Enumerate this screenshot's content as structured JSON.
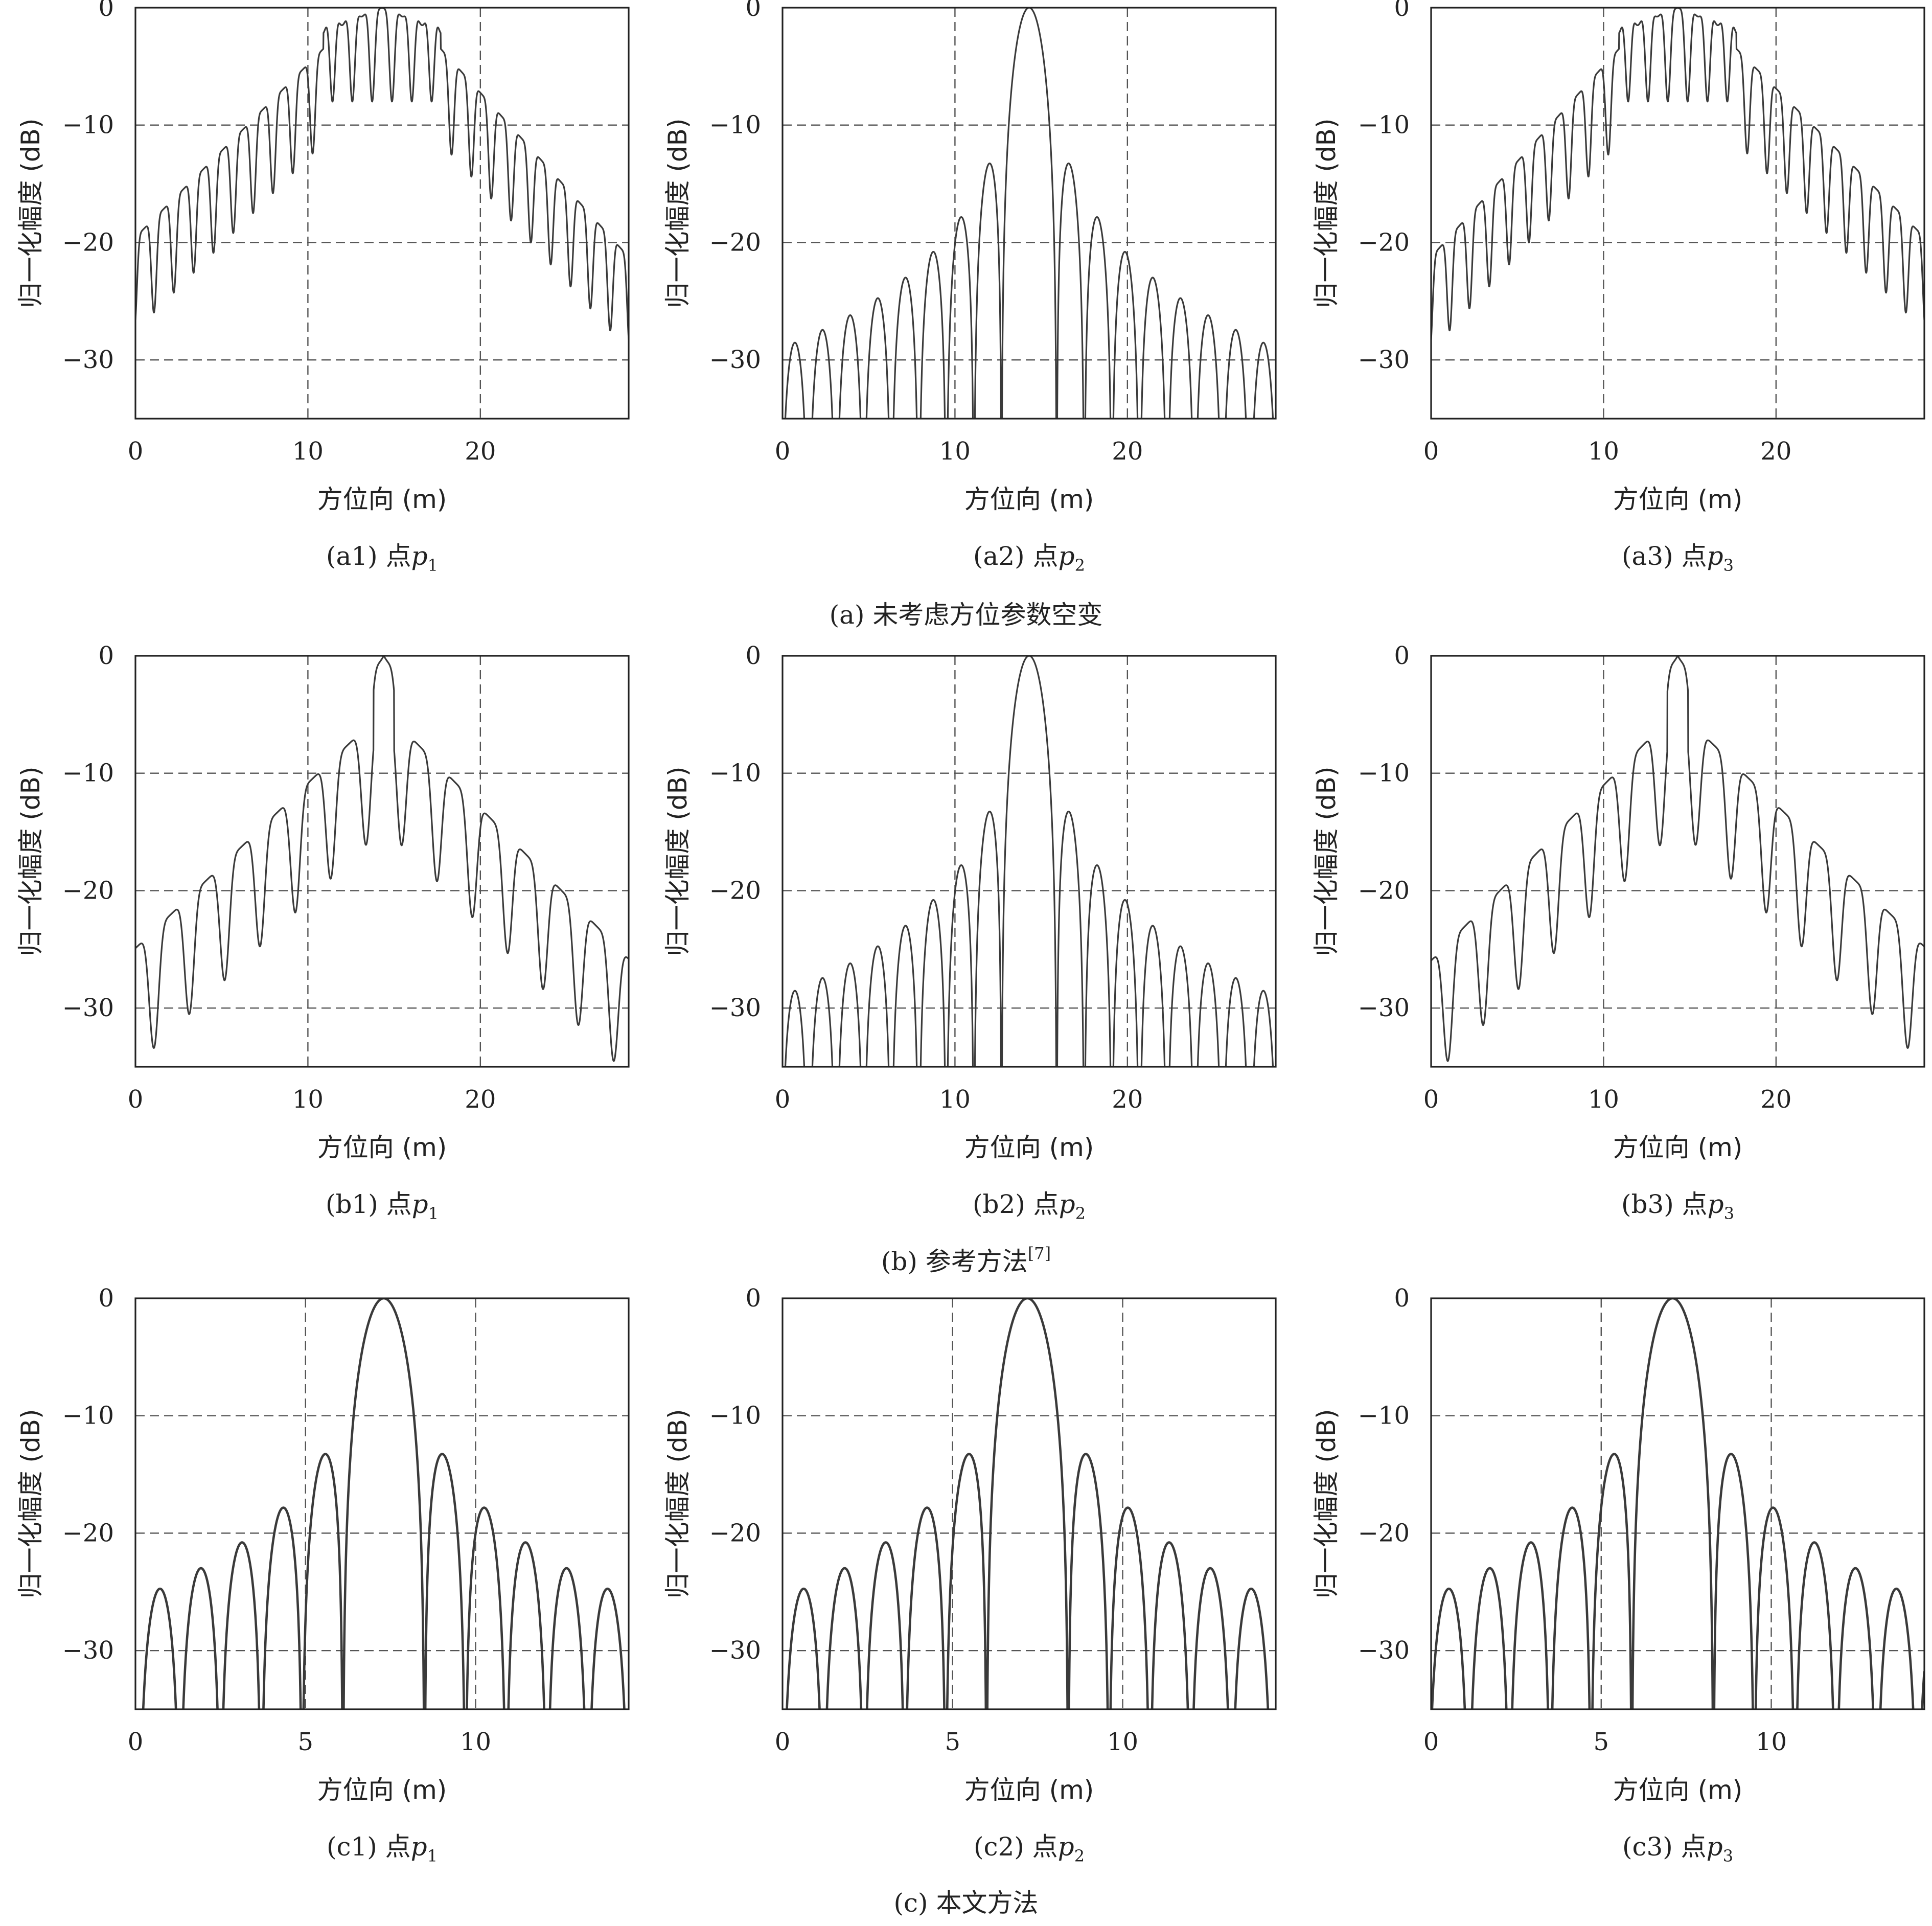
{
  "figure": {
    "group_captions": [
      {
        "prefix": "(a) ",
        "text": "未考虑方位参数空变"
      },
      {
        "prefix": "(b) ",
        "text": "参考方法",
        "ref": "[7]"
      },
      {
        "prefix": "(c) ",
        "text": "本文方法"
      }
    ],
    "colors": {
      "curve": "#3a3a3a",
      "grid": "#555555",
      "frame": "#222222",
      "background": "#ffffff"
    }
  },
  "chart_data": [
    {
      "id": "a1",
      "type": "line",
      "panel_label": "(a1)",
      "point_label": "点",
      "point_var": "p",
      "point_sub": "1",
      "xlabel": "方位向 (m)",
      "ylabel": "归一化幅度 (dB)",
      "xlim": [
        0,
        28.6
      ],
      "ylim": [
        -35,
        0
      ],
      "xticks": [
        0,
        10,
        20
      ],
      "yticks": [
        0,
        -10,
        -20,
        -30
      ],
      "x_grid": [
        10,
        20
      ],
      "y_grid": [
        -10,
        -20,
        -30
      ],
      "model": {
        "kind": "broad",
        "center": 14.3,
        "spacing": 1.15,
        "flat_half_width": 3.4,
        "flat_level": 0,
        "decay_db_per_m": 1.55,
        "shoulder_drop": 3.5,
        "ripple_db": 2.2,
        "null_db": 8,
        "asym": 0.05,
        "stroke": 3.2
      }
    },
    {
      "id": "a2",
      "type": "line",
      "panel_label": "(a2)",
      "point_label": "点",
      "point_var": "p",
      "point_sub": "2",
      "xlabel": "方位向 (m)",
      "ylabel": "归一化幅度 (dB)",
      "xlim": [
        0,
        28.6
      ],
      "ylim": [
        -35,
        0
      ],
      "xticks": [
        0,
        10,
        20
      ],
      "yticks": [
        0,
        -10,
        -20,
        -30
      ],
      "x_grid": [
        10,
        20
      ],
      "y_grid": [
        -10,
        -20,
        -30
      ],
      "model": {
        "kind": "sinc",
        "center": 14.3,
        "spacing": 1.6,
        "stroke": 3.2
      }
    },
    {
      "id": "a3",
      "type": "line",
      "panel_label": "(a3)",
      "point_label": "点",
      "point_var": "p",
      "point_sub": "3",
      "xlabel": "方位向 (m)",
      "ylabel": "归一化幅度 (dB)",
      "xlim": [
        0,
        28.6
      ],
      "ylim": [
        -35,
        0
      ],
      "xticks": [
        0,
        10,
        20
      ],
      "yticks": [
        0,
        -10,
        -20,
        -30
      ],
      "x_grid": [
        10,
        20
      ],
      "y_grid": [
        -10,
        -20,
        -30
      ],
      "model": {
        "kind": "broad",
        "center": 14.3,
        "spacing": 1.15,
        "flat_half_width": 3.4,
        "flat_level": 0,
        "decay_db_per_m": 1.55,
        "shoulder_drop": 3.5,
        "ripple_db": 2.2,
        "null_db": 8,
        "asym": -0.05,
        "stroke": 3.2
      }
    },
    {
      "id": "b1",
      "type": "line",
      "panel_label": "(b1)",
      "point_label": "点",
      "point_var": "p",
      "point_sub": "1",
      "xlabel": "方位向 (m)",
      "ylabel": "归一化幅度 (dB)",
      "xlim": [
        0,
        28.6
      ],
      "ylim": [
        -35,
        0
      ],
      "xticks": [
        0,
        10,
        20
      ],
      "yticks": [
        0,
        -10,
        -20,
        -30
      ],
      "x_grid": [
        10,
        20
      ],
      "y_grid": [
        -10,
        -20,
        -30
      ],
      "model": {
        "kind": "broad",
        "center": 14.4,
        "spacing": 2.05,
        "flat_half_width": 0.6,
        "flat_level": 0,
        "decay_db_per_m": 1.45,
        "shoulder_drop": 5.5,
        "ripple_db": 1.5,
        "null_db": 10,
        "asym": 0.03,
        "stroke": 3.2
      }
    },
    {
      "id": "b2",
      "type": "line",
      "panel_label": "(b2)",
      "point_label": "点",
      "point_var": "p",
      "point_sub": "2",
      "xlabel": "方位向 (m)",
      "ylabel": "归一化幅度 (dB)",
      "xlim": [
        0,
        28.6
      ],
      "ylim": [
        -35,
        0
      ],
      "xticks": [
        0,
        10,
        20
      ],
      "yticks": [
        0,
        -10,
        -20,
        -30
      ],
      "x_grid": [
        10,
        20
      ],
      "y_grid": [
        -10,
        -20,
        -30
      ],
      "model": {
        "kind": "sinc",
        "center": 14.3,
        "spacing": 1.6,
        "stroke": 3.2
      }
    },
    {
      "id": "b3",
      "type": "line",
      "panel_label": "(b3)",
      "point_label": "点",
      "point_var": "p",
      "point_sub": "3",
      "xlabel": "方位向 (m)",
      "ylabel": "归一化幅度 (dB)",
      "xlim": [
        0,
        28.6
      ],
      "ylim": [
        -35,
        0
      ],
      "xticks": [
        0,
        10,
        20
      ],
      "yticks": [
        0,
        -10,
        -20,
        -30
      ],
      "x_grid": [
        10,
        20
      ],
      "y_grid": [
        -10,
        -20,
        -30
      ],
      "model": {
        "kind": "broad",
        "center": 14.3,
        "spacing": 2.05,
        "flat_half_width": 0.6,
        "flat_level": 0,
        "decay_db_per_m": 1.45,
        "shoulder_drop": 5.5,
        "ripple_db": 1.5,
        "null_db": 10,
        "asym": -0.03,
        "stroke": 3.2
      }
    },
    {
      "id": "c1",
      "type": "line",
      "panel_label": "(c1)",
      "point_label": "点",
      "point_var": "p",
      "point_sub": "1",
      "xlabel": "方位向 (m)",
      "ylabel": "归一化幅度 (dB)",
      "xlim": [
        0,
        14.5
      ],
      "ylim": [
        -35,
        0
      ],
      "xticks": [
        0,
        5,
        10
      ],
      "yticks": [
        0,
        -10,
        -20,
        -30
      ],
      "x_grid": [
        5,
        10
      ],
      "y_grid": [
        -10,
        -20,
        -30
      ],
      "model": {
        "kind": "sinc",
        "center": 7.3,
        "spacing": 1.2,
        "stroke": 4.6
      }
    },
    {
      "id": "c2",
      "type": "line",
      "panel_label": "(c2)",
      "point_label": "点",
      "point_var": "p",
      "point_sub": "2",
      "xlabel": "方位向 (m)",
      "ylabel": "归一化幅度 (dB)",
      "xlim": [
        0,
        14.5
      ],
      "ylim": [
        -35,
        0
      ],
      "xticks": [
        0,
        5,
        10
      ],
      "yticks": [
        0,
        -10,
        -20,
        -30
      ],
      "x_grid": [
        5,
        10
      ],
      "y_grid": [
        -10,
        -20,
        -30
      ],
      "model": {
        "kind": "sinc",
        "center": 7.2,
        "spacing": 1.2,
        "stroke": 4.6
      }
    },
    {
      "id": "c3",
      "type": "line",
      "panel_label": "(c3)",
      "point_label": "点",
      "point_var": "p",
      "point_sub": "3",
      "xlabel": "方位向 (m)",
      "ylabel": "归一化幅度 (dB)",
      "xlim": [
        0,
        14.5
      ],
      "ylim": [
        -35,
        0
      ],
      "xticks": [
        0,
        5,
        10
      ],
      "yticks": [
        0,
        -10,
        -20,
        -30
      ],
      "x_grid": [
        5,
        10
      ],
      "y_grid": [
        -10,
        -20,
        -30
      ],
      "model": {
        "kind": "sinc",
        "center": 7.1,
        "spacing": 1.2,
        "stroke": 4.6
      }
    }
  ]
}
